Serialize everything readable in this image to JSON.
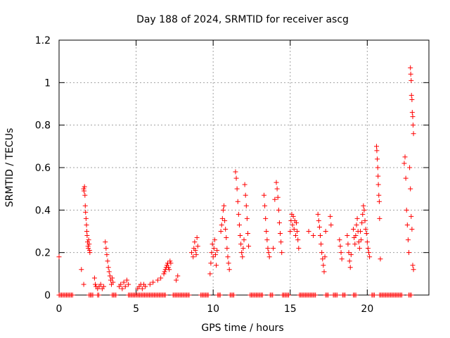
{
  "chart_data": {
    "type": "scatter",
    "title": "Day 188 of 2024, SRMTID for receiver ascg",
    "xlabel": "GPS time / hours",
    "ylabel": "SRMTID / TECUs",
    "xlim": [
      0,
      24
    ],
    "ylim": [
      0,
      1.2
    ],
    "xticks": [
      0,
      5,
      10,
      15,
      20
    ],
    "xtick_labels": [
      "0",
      "5",
      "10",
      "15",
      "20"
    ],
    "yticks": [
      0,
      0.2,
      0.4,
      0.6,
      0.8,
      1.0,
      1.2
    ],
    "ytick_labels": [
      "0",
      "0.2",
      "0.4",
      "0.6",
      "0.8",
      "1",
      "1.2"
    ],
    "grid": true,
    "marker": "+",
    "color": "#ff0000",
    "series": [
      {
        "name": "SRMTID",
        "points": [
          [
            0.0,
            0.18
          ],
          [
            1.45,
            0.12
          ],
          [
            1.6,
            0.05
          ],
          [
            1.6,
            0.5
          ],
          [
            1.62,
            0.49
          ],
          [
            1.65,
            0.51
          ],
          [
            1.68,
            0.47
          ],
          [
            1.7,
            0.42
          ],
          [
            1.72,
            0.39
          ],
          [
            1.75,
            0.36
          ],
          [
            1.78,
            0.33
          ],
          [
            1.8,
            0.3
          ],
          [
            1.82,
            0.28
          ],
          [
            1.85,
            0.25
          ],
          [
            1.88,
            0.23
          ],
          [
            1.9,
            0.22
          ],
          [
            1.92,
            0.26
          ],
          [
            1.95,
            0.24
          ],
          [
            1.98,
            0.21
          ],
          [
            2.0,
            0.2
          ],
          [
            2.3,
            0.08
          ],
          [
            2.35,
            0.05
          ],
          [
            2.4,
            0.04
          ],
          [
            2.5,
            0.03
          ],
          [
            2.6,
            0.04
          ],
          [
            2.7,
            0.05
          ],
          [
            2.8,
            0.03
          ],
          [
            2.9,
            0.04
          ],
          [
            3.0,
            0.25
          ],
          [
            3.05,
            0.22
          ],
          [
            3.1,
            0.19
          ],
          [
            3.15,
            0.16
          ],
          [
            3.2,
            0.13
          ],
          [
            3.25,
            0.11
          ],
          [
            3.3,
            0.09
          ],
          [
            3.35,
            0.07
          ],
          [
            3.4,
            0.05
          ],
          [
            3.45,
            0.08
          ],
          [
            3.5,
            0.06
          ],
          [
            3.9,
            0.04
          ],
          [
            4.0,
            0.05
          ],
          [
            4.1,
            0.03
          ],
          [
            4.2,
            0.06
          ],
          [
            4.3,
            0.04
          ],
          [
            4.4,
            0.07
          ],
          [
            4.5,
            0.05
          ],
          [
            5.1,
            0.03
          ],
          [
            5.2,
            0.04
          ],
          [
            5.3,
            0.05
          ],
          [
            5.4,
            0.03
          ],
          [
            5.5,
            0.05
          ],
          [
            5.6,
            0.04
          ],
          [
            5.9,
            0.05
          ],
          [
            6.1,
            0.06
          ],
          [
            6.4,
            0.07
          ],
          [
            6.6,
            0.08
          ],
          [
            6.8,
            0.1
          ],
          [
            6.85,
            0.11
          ],
          [
            6.9,
            0.12
          ],
          [
            6.95,
            0.13
          ],
          [
            7.0,
            0.14
          ],
          [
            7.05,
            0.15
          ],
          [
            7.1,
            0.13
          ],
          [
            7.15,
            0.12
          ],
          [
            7.2,
            0.16
          ],
          [
            7.25,
            0.15
          ],
          [
            7.6,
            0.07
          ],
          [
            7.7,
            0.09
          ],
          [
            8.6,
            0.2
          ],
          [
            8.7,
            0.18
          ],
          [
            8.75,
            0.22
          ],
          [
            8.8,
            0.25
          ],
          [
            8.85,
            0.21
          ],
          [
            8.9,
            0.19
          ],
          [
            8.95,
            0.27
          ],
          [
            9.0,
            0.23
          ],
          [
            9.8,
            0.1
          ],
          [
            9.85,
            0.15
          ],
          [
            9.9,
            0.2
          ],
          [
            9.95,
            0.24
          ],
          [
            10.0,
            0.18
          ],
          [
            10.05,
            0.22
          ],
          [
            10.1,
            0.26
          ],
          [
            10.15,
            0.19
          ],
          [
            10.2,
            0.14
          ],
          [
            10.25,
            0.21
          ],
          [
            10.5,
            0.3
          ],
          [
            10.55,
            0.33
          ],
          [
            10.6,
            0.36
          ],
          [
            10.65,
            0.4
          ],
          [
            10.7,
            0.42
          ],
          [
            10.75,
            0.35
          ],
          [
            10.8,
            0.31
          ],
          [
            10.85,
            0.27
          ],
          [
            10.9,
            0.22
          ],
          [
            10.95,
            0.18
          ],
          [
            11.0,
            0.15
          ],
          [
            11.05,
            0.12
          ],
          [
            11.45,
            0.58
          ],
          [
            11.5,
            0.55
          ],
          [
            11.55,
            0.5
          ],
          [
            11.6,
            0.44
          ],
          [
            11.65,
            0.38
          ],
          [
            11.7,
            0.33
          ],
          [
            11.75,
            0.28
          ],
          [
            11.8,
            0.24
          ],
          [
            11.85,
            0.2
          ],
          [
            11.9,
            0.18
          ],
          [
            11.95,
            0.22
          ],
          [
            12.0,
            0.26
          ],
          [
            12.05,
            0.52
          ],
          [
            12.1,
            0.47
          ],
          [
            12.15,
            0.42
          ],
          [
            12.2,
            0.36
          ],
          [
            12.25,
            0.29
          ],
          [
            12.3,
            0.23
          ],
          [
            13.3,
            0.47
          ],
          [
            13.35,
            0.42
          ],
          [
            13.4,
            0.36
          ],
          [
            13.45,
            0.3
          ],
          [
            13.5,
            0.26
          ],
          [
            13.55,
            0.22
          ],
          [
            13.6,
            0.2
          ],
          [
            13.65,
            0.18
          ],
          [
            13.9,
            0.22
          ],
          [
            14.0,
            0.45
          ],
          [
            14.1,
            0.53
          ],
          [
            14.15,
            0.5
          ],
          [
            14.2,
            0.46
          ],
          [
            14.25,
            0.4
          ],
          [
            14.3,
            0.34
          ],
          [
            14.35,
            0.29
          ],
          [
            14.4,
            0.25
          ],
          [
            14.45,
            0.2
          ],
          [
            15.0,
            0.3
          ],
          [
            15.05,
            0.35
          ],
          [
            15.1,
            0.38
          ],
          [
            15.15,
            0.33
          ],
          [
            15.2,
            0.37
          ],
          [
            15.25,
            0.31
          ],
          [
            15.3,
            0.35
          ],
          [
            15.35,
            0.28
          ],
          [
            15.4,
            0.34
          ],
          [
            15.45,
            0.3
          ],
          [
            15.5,
            0.26
          ],
          [
            15.55,
            0.22
          ],
          [
            16.2,
            0.3
          ],
          [
            16.5,
            0.28
          ],
          [
            16.8,
            0.38
          ],
          [
            16.85,
            0.35
          ],
          [
            16.9,
            0.32
          ],
          [
            16.95,
            0.28
          ],
          [
            17.0,
            0.24
          ],
          [
            17.05,
            0.2
          ],
          [
            17.1,
            0.17
          ],
          [
            17.15,
            0.14
          ],
          [
            17.2,
            0.11
          ],
          [
            17.25,
            0.18
          ],
          [
            17.3,
            0.3
          ],
          [
            17.6,
            0.37
          ],
          [
            17.65,
            0.33
          ],
          [
            18.2,
            0.26
          ],
          [
            18.25,
            0.23
          ],
          [
            18.3,
            0.2
          ],
          [
            18.35,
            0.17
          ],
          [
            18.7,
            0.28
          ],
          [
            18.75,
            0.24
          ],
          [
            18.8,
            0.2
          ],
          [
            18.85,
            0.16
          ],
          [
            18.9,
            0.13
          ],
          [
            18.95,
            0.19
          ],
          [
            19.1,
            0.31
          ],
          [
            19.15,
            0.27
          ],
          [
            19.2,
            0.24
          ],
          [
            19.25,
            0.28
          ],
          [
            19.3,
            0.33
          ],
          [
            19.35,
            0.36
          ],
          [
            19.4,
            0.3
          ],
          [
            19.45,
            0.25
          ],
          [
            19.5,
            0.22
          ],
          [
            19.55,
            0.3
          ],
          [
            19.6,
            0.26
          ],
          [
            19.65,
            0.34
          ],
          [
            19.7,
            0.38
          ],
          [
            19.75,
            0.42
          ],
          [
            19.8,
            0.4
          ],
          [
            19.85,
            0.35
          ],
          [
            19.9,
            0.31
          ],
          [
            19.95,
            0.29
          ],
          [
            20.0,
            0.25
          ],
          [
            20.05,
            0.22
          ],
          [
            20.1,
            0.2
          ],
          [
            20.15,
            0.18
          ],
          [
            20.6,
            0.7
          ],
          [
            20.62,
            0.68
          ],
          [
            20.65,
            0.64
          ],
          [
            20.68,
            0.6
          ],
          [
            20.7,
            0.56
          ],
          [
            20.72,
            0.52
          ],
          [
            20.75,
            0.47
          ],
          [
            20.78,
            0.44
          ],
          [
            20.8,
            0.36
          ],
          [
            20.85,
            0.17
          ],
          [
            22.4,
            0.62
          ],
          [
            22.45,
            0.65
          ],
          [
            22.5,
            0.55
          ],
          [
            22.55,
            0.4
          ],
          [
            22.6,
            0.33
          ],
          [
            22.65,
            0.26
          ],
          [
            22.7,
            0.2
          ],
          [
            22.75,
            0.6
          ],
          [
            22.8,
            0.5
          ],
          [
            22.85,
            0.37
          ],
          [
            22.9,
            0.31
          ],
          [
            22.95,
            0.14
          ],
          [
            23.0,
            0.12
          ],
          [
            22.8,
            1.07
          ],
          [
            22.82,
            1.04
          ],
          [
            22.85,
            1.01
          ],
          [
            22.87,
            0.94
          ],
          [
            22.9,
            0.92
          ],
          [
            22.92,
            0.86
          ],
          [
            22.95,
            0.84
          ],
          [
            22.97,
            0.8
          ],
          [
            23.0,
            0.76
          ]
        ],
        "zero_runs": [
          [
            0.0,
            0.9
          ],
          [
            1.95,
            2.2
          ],
          [
            2.5,
            2.6
          ],
          [
            3.45,
            3.7
          ],
          [
            4.5,
            6.9
          ],
          [
            7.4,
            8.5
          ],
          [
            9.2,
            9.7
          ],
          [
            10.3,
            10.5
          ],
          [
            11.1,
            11.4
          ],
          [
            12.4,
            13.2
          ],
          [
            13.7,
            13.9
          ],
          [
            14.5,
            14.9
          ],
          [
            15.6,
            16.7
          ],
          [
            17.3,
            17.5
          ],
          [
            17.8,
            18.1
          ],
          [
            18.4,
            18.6
          ],
          [
            19.1,
            19.3
          ],
          [
            20.3,
            20.5
          ],
          [
            20.8,
            22.3
          ],
          [
            22.7,
            22.9
          ]
        ]
      }
    ]
  }
}
